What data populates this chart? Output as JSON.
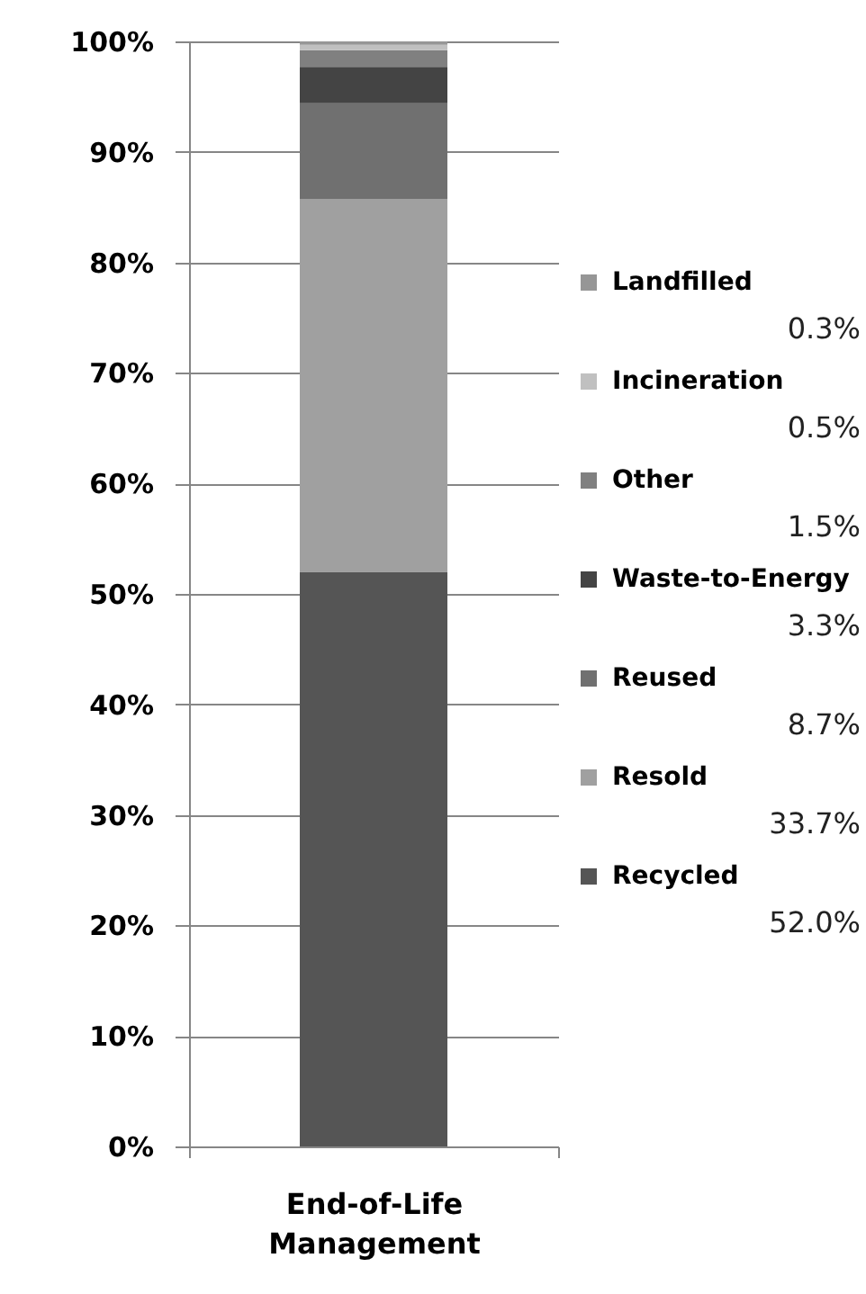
{
  "chart_data": {
    "type": "bar",
    "stacked": true,
    "categories": [
      "End-of-Life Management"
    ],
    "series": [
      {
        "name": "Recycled",
        "color": "#555555",
        "values": [
          52.0
        ]
      },
      {
        "name": "Resold",
        "color": "#a0a0a0",
        "values": [
          33.7
        ]
      },
      {
        "name": "Reused",
        "color": "#707070",
        "values": [
          8.7
        ]
      },
      {
        "name": "Waste-to-Energy",
        "color": "#444444",
        "values": [
          3.3
        ]
      },
      {
        "name": "Other",
        "color": "#808080",
        "values": [
          1.5
        ]
      },
      {
        "name": "Incineration",
        "color": "#c0c0c0",
        "values": [
          0.5
        ]
      },
      {
        "name": "Landfilled",
        "color": "#969696",
        "values": [
          0.3
        ]
      }
    ],
    "annotations": [
      "0.3%",
      "0.5%",
      "1.5%",
      "3.3%",
      "8.7%",
      "33.7%",
      "52.0%"
    ],
    "ylim": [
      0,
      100
    ],
    "yticks": [
      {
        "value": 0,
        "label": "0%"
      },
      {
        "value": 10,
        "label": "10%"
      },
      {
        "value": 20,
        "label": "20%"
      },
      {
        "value": 30,
        "label": "30%"
      },
      {
        "value": 40,
        "label": "40%"
      },
      {
        "value": 50,
        "label": "50%"
      },
      {
        "value": 60,
        "label": "60%"
      },
      {
        "value": 70,
        "label": "70%"
      },
      {
        "value": 80,
        "label": "80%"
      },
      {
        "value": 90,
        "label": "90%"
      },
      {
        "value": 100,
        "label": "100%"
      }
    ],
    "grid": "y",
    "legend": "right"
  }
}
